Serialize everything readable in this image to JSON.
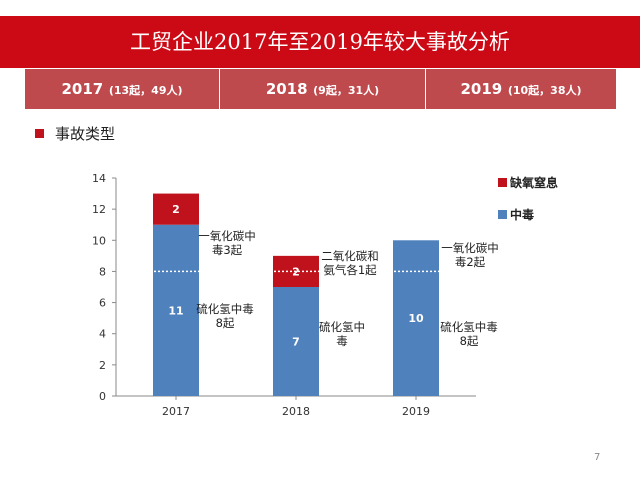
{
  "slide": {
    "title": "工贸企业2017年至2019年较大事故分析",
    "page_number": "7",
    "colors": {
      "accent_red": "#cc0a16",
      "header_row": "#bf4a4e"
    }
  },
  "year_headers": [
    {
      "year": "2017",
      "detail": "(13起，49人)"
    },
    {
      "year": "2018",
      "detail": "(9起，31人)"
    },
    {
      "year": "2019",
      "detail": "(10起，38人)"
    }
  ],
  "section": {
    "label": "事故类型"
  },
  "annotations": {
    "y2017_top": "一氧化碳中毒3起",
    "y2017_bottom": "硫化氢中毒8起",
    "y2018_top": "二氧化碳和氨气各1起",
    "y2018_bottom": "硫化氢中毒",
    "y2019_top": "一氧化碳中毒2起",
    "y2019_bottom": "硫化氢中毒8起"
  },
  "chart_data": {
    "type": "bar",
    "stacked": true,
    "categories": [
      "2017",
      "2018",
      "2019"
    ],
    "series": [
      {
        "name": "中毒",
        "values": [
          11,
          7,
          10
        ],
        "color": "#4f81bd"
      },
      {
        "name": "缺氧窒息",
        "values": [
          2,
          2,
          0
        ],
        "color": "#c0121c"
      }
    ],
    "ylim": [
      0,
      14
    ],
    "yticks": [
      0,
      2,
      4,
      6,
      8,
      10,
      12,
      14
    ],
    "grid": false,
    "legend": "right",
    "reference_line": 8
  }
}
